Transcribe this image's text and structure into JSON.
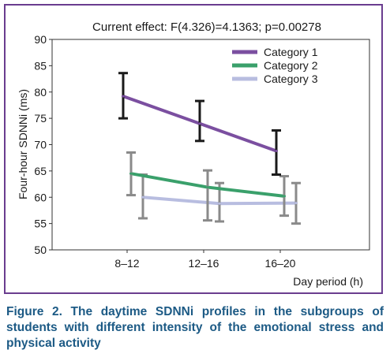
{
  "chart_data": {
    "type": "line",
    "title": "Current effect: F(4.326)=4.1363; p=0.00278",
    "xlabel": "Day period (h)",
    "ylabel": "Four-hour SDNNi (ms)",
    "categories": [
      "8–12",
      "12–16",
      "16–20"
    ],
    "ylim": [
      50,
      90
    ],
    "yticks": [
      50,
      55,
      60,
      65,
      70,
      75,
      80,
      85,
      90
    ],
    "grid": false,
    "legend_position": "top-right",
    "series": [
      {
        "name": "Category 1",
        "color": "#7b4fa0",
        "errorbar_color": "#1a1a1a",
        "values": [
          79.2,
          74.0,
          68.8
        ],
        "err_low": [
          75.0,
          70.7,
          64.3
        ],
        "err_high": [
          83.6,
          78.3,
          72.7
        ]
      },
      {
        "name": "Category 2",
        "color": "#3aa06b",
        "errorbar_color": "#8a8a8a",
        "values": [
          64.5,
          61.9,
          60.2
        ],
        "err_low": [
          60.4,
          55.6,
          56.5
        ],
        "err_high": [
          68.5,
          65.1,
          64.0
        ]
      },
      {
        "name": "Category 3",
        "color": "#b8bde0",
        "errorbar_color": "#8a8a8a",
        "values": [
          60.0,
          58.8,
          58.9
        ],
        "err_low": [
          56.0,
          55.4,
          55.0
        ],
        "err_high": [
          64.3,
          62.7,
          62.7
        ]
      }
    ]
  },
  "caption": "Figure 2. The daytime SDNNi profiles in the subgroups of students with different intensity of the emotional stress and physical activity"
}
